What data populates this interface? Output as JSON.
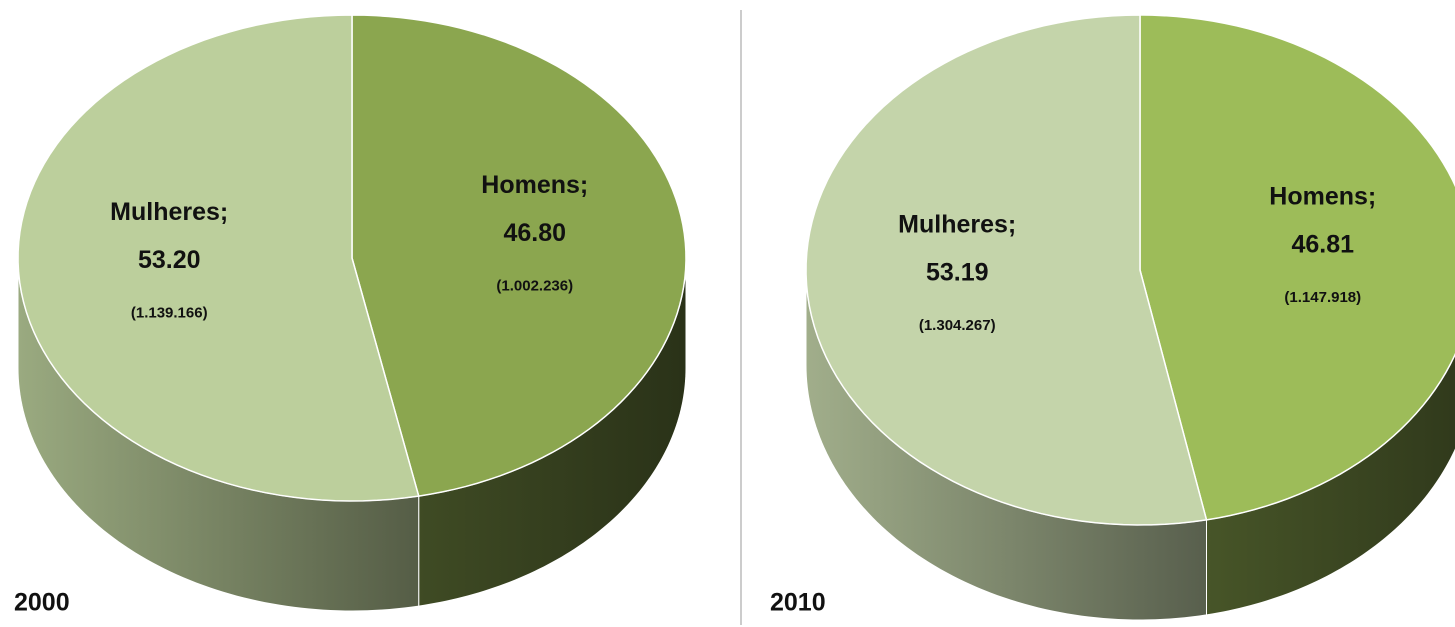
{
  "chart_data": [
    {
      "type": "pie",
      "title": "2000",
      "categories": [
        "Homens;",
        "Mulheres;"
      ],
      "values": [
        46.8,
        53.2
      ],
      "value_labels": [
        "46.80",
        "53.20"
      ],
      "annotations": [
        "(1.002.236)",
        "(1.139.166)"
      ],
      "colors": [
        "#8ba64f",
        "#bccf9c"
      ]
    },
    {
      "type": "pie",
      "title": "2010",
      "categories": [
        "Homens;",
        "Mulheres;"
      ],
      "values": [
        46.81,
        53.19
      ],
      "annotations": [
        "(1.147.918)",
        "(1.304.267)"
      ],
      "colors": [
        "#9dbc59",
        "#c4d4aa"
      ]
    }
  ]
}
